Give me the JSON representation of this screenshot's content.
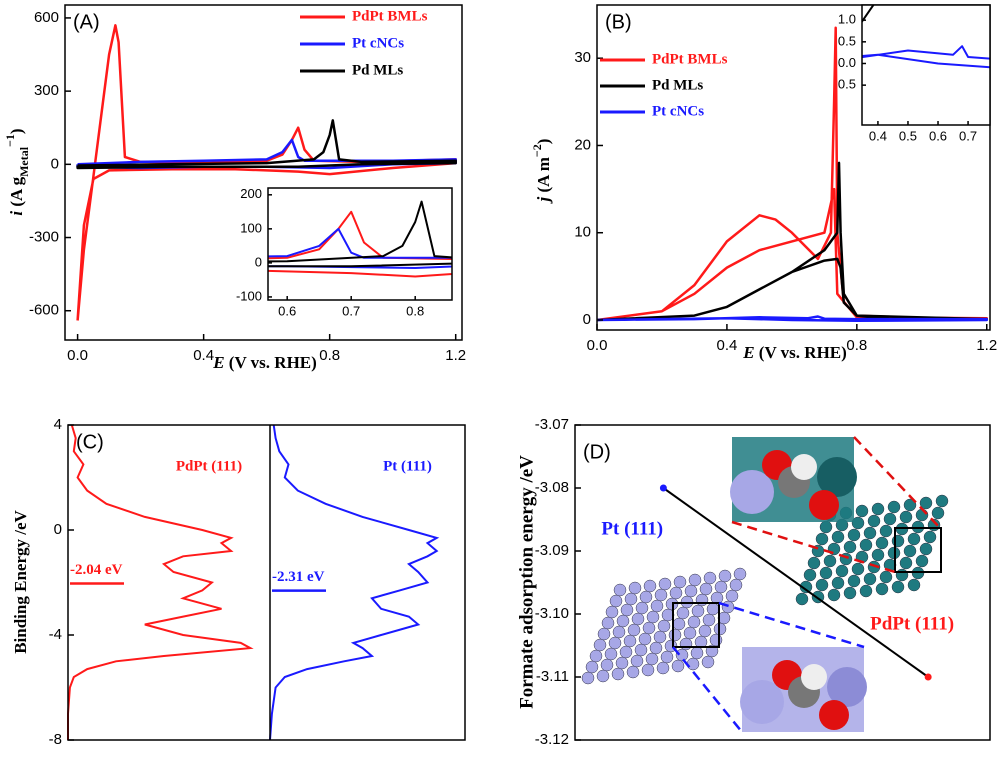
{
  "chart_data": [
    {
      "type": "cv",
      "panel": "(A)",
      "xlabel": [
        "E",
        " (V vs. RHE)"
      ],
      "ylabel": [
        "i",
        " (A g",
        "Metal",
        "−1",
        ")"
      ],
      "xlim": [
        -0.04,
        1.22
      ],
      "xticks": [
        {
          "value": 0,
          "label": "0.0"
        },
        0.4,
        0.8,
        1.2
      ],
      "ylim": [
        -720,
        653
      ],
      "yticks": [
        600,
        300,
        0,
        -300,
        -600
      ],
      "series": [
        {
          "name": "PdPt BMLs",
          "color": "#ff1a1a",
          "x": [
            0.0,
            0.02,
            0.05,
            0.08,
            0.1,
            0.12,
            0.13,
            0.15,
            0.2,
            0.4,
            0.6,
            0.65,
            0.68,
            0.7,
            0.72,
            0.75,
            0.9,
            1.2,
            1.2,
            1.0,
            0.8,
            0.7,
            0.5,
            0.3,
            0.1,
            0.05,
            0.02,
            0.0
          ],
          "values": [
            -640,
            -350,
            -50,
            250,
            450,
            570,
            500,
            30,
            10,
            5,
            15,
            40,
            100,
            150,
            60,
            15,
            10,
            20,
            5,
            -15,
            -40,
            -30,
            -20,
            -20,
            -25,
            -60,
            -250,
            -640
          ]
        },
        {
          "name": "Pt cNCs",
          "color": "#1a1aff",
          "x": [
            0,
            0.2,
            0.4,
            0.6,
            0.65,
            0.68,
            0.7,
            0.72,
            0.8,
            1.0,
            1.2,
            1.2,
            1.0,
            0.8,
            0.6,
            0.4,
            0.2,
            0,
            0
          ],
          "values": [
            0,
            10,
            15,
            20,
            50,
            100,
            30,
            15,
            15,
            15,
            20,
            5,
            0,
            -15,
            -10,
            -10,
            -15,
            -10,
            0
          ]
        },
        {
          "name": "Pd MLs",
          "color": "#000000",
          "x": [
            0,
            0.3,
            0.6,
            0.75,
            0.78,
            0.8,
            0.81,
            0.83,
            0.9,
            1.2,
            1.2,
            0.9,
            0.7,
            0.5,
            0.3,
            0,
            0
          ],
          "values": [
            -5,
            0,
            5,
            20,
            50,
            120,
            180,
            20,
            10,
            15,
            5,
            0,
            -10,
            -10,
            -10,
            -15,
            -5
          ]
        }
      ],
      "inset": {
        "xlim": [
          0.57,
          0.8575
        ],
        "xticks": [
          0.6,
          0.7,
          0.8
        ],
        "ylim": [
          -109,
          220
        ],
        "yticks": [
          200,
          100,
          0,
          -100
        ]
      }
    },
    {
      "type": "cv",
      "panel": "(B)",
      "xlabel": [
        "E",
        " (V vs. RHE)"
      ],
      "ylabel": [
        "j",
        " (A m",
        "−2",
        ")"
      ],
      "xlim": [
        0,
        1.21
      ],
      "xticks": [
        {
          "value": 0,
          "label": "0.0"
        },
        0.4,
        0.8,
        1.2
      ],
      "ylim": [
        -1.15,
        36.1
      ],
      "yticks": [
        0,
        10,
        20,
        30
      ],
      "series": [
        {
          "name": "PdPt BMLs",
          "color": "#ff1a1a",
          "x": [
            0,
            0.2,
            0.3,
            0.4,
            0.5,
            0.55,
            0.6,
            0.68,
            0.72,
            0.73,
            0.735,
            0.74,
            0.76,
            0.8,
            1.0,
            1.2,
            1.2,
            0.8,
            0.74,
            0.73,
            0.7,
            0.6,
            0.5,
            0.4,
            0.3,
            0.2,
            0
          ],
          "values": [
            0,
            1,
            4,
            9,
            12,
            11.5,
            10,
            7,
            10,
            25,
            33.5,
            10,
            2,
            0.5,
            0.2,
            0.2,
            0.2,
            0.3,
            3,
            15,
            10,
            9,
            8,
            6,
            3,
            1,
            0
          ]
        },
        {
          "name": "Pd MLs",
          "color": "#000000",
          "x": [
            0,
            0.3,
            0.4,
            0.5,
            0.6,
            0.7,
            0.74,
            0.75,
            0.76,
            0.8,
            0.9,
            1.2,
            1.2,
            0.8,
            0.76,
            0.75,
            0.745,
            0.74,
            0.72,
            0.7,
            0.6,
            0.5,
            0.4,
            0.3,
            0
          ],
          "values": [
            0,
            0.5,
            1.5,
            3.5,
            5.5,
            6.8,
            7,
            6,
            2,
            0.5,
            0.1,
            0.1,
            0.1,
            0.5,
            3,
            10,
            18,
            10,
            9,
            8,
            5.5,
            3.5,
            1.5,
            0.5,
            0
          ]
        },
        {
          "name": "Pt cNCs",
          "color": "#1a1aff",
          "x": [
            0,
            0.3,
            0.5,
            0.65,
            0.68,
            0.7,
            0.8,
            1.2,
            1.2,
            0.8,
            0.6,
            0.4,
            0.2,
            0
          ],
          "values": [
            0,
            0.1,
            0.3,
            0.2,
            0.4,
            0.15,
            0.1,
            0.1,
            0,
            -0.1,
            0,
            0.2,
            0.1,
            0
          ]
        }
      ],
      "inset": {
        "xlim": [
          0.347,
          0.773
        ],
        "xticks": [
          0.4,
          0.5,
          0.6,
          0.7
        ],
        "ylim": [
          -1.42,
          1.35
        ],
        "yticks": [
          {
            "value": 1,
            "label": "1.0"
          },
          0.5,
          {
            "value": 0,
            "label": "0.0"
          },
          {
            "value": -0.5,
            "label": "0.5"
          }
        ]
      }
    },
    {
      "type": "dos",
      "panel": "(C)",
      "ylabel": "Binding Energy /eV",
      "ylim": [
        -8,
        4
      ],
      "yticks": [
        4,
        0,
        -4,
        -8
      ],
      "energies": [
        4,
        3.5,
        3,
        2.5,
        2,
        1.5,
        1,
        0.5,
        0,
        -0.3,
        -0.5,
        -0.8,
        -1,
        -1.3,
        -1.6,
        -2,
        -2.3,
        -2.6,
        -3,
        -3.3,
        -3.6,
        -4,
        -4.3,
        -4.5,
        -4.8,
        -5,
        -5.3,
        -5.6,
        -6,
        -7,
        -8
      ],
      "series": [
        {
          "name": "PdPt (111)",
          "color": "#ff1a1a",
          "dband": -2.04,
          "dband_label": "-2.04 eV",
          "values": [
            0.02,
            0.04,
            0.03,
            0.08,
            0.05,
            0.1,
            0.2,
            0.4,
            0.7,
            0.85,
            0.8,
            0.85,
            0.6,
            0.5,
            0.55,
            0.75,
            0.7,
            0.6,
            0.8,
            0.6,
            0.4,
            0.6,
            0.9,
            0.95,
            0.5,
            0.25,
            0.1,
            0.03,
            0.01,
            0,
            0
          ]
        },
        {
          "name": "Pt (111)",
          "color": "#1a1aff",
          "dband": -2.31,
          "dband_label": "-2.31 eV",
          "values": [
            0.02,
            0.03,
            0.05,
            0.1,
            0.08,
            0.15,
            0.3,
            0.5,
            0.75,
            0.9,
            0.85,
            0.9,
            0.85,
            0.75,
            0.8,
            0.85,
            0.7,
            0.55,
            0.6,
            0.75,
            0.8,
            0.6,
            0.45,
            0.5,
            0.55,
            0.4,
            0.2,
            0.08,
            0.03,
            0.01,
            0
          ]
        }
      ]
    },
    {
      "type": "scatter",
      "panel": "(D)",
      "ylabel": "Formate adsorption energy /eV",
      "ylim": [
        -3.12,
        -3.07
      ],
      "yticks": [
        -3.07,
        -3.08,
        -3.09,
        {
          "value": -3.1,
          "label": "-3.10"
        },
        -3.11,
        -3.12
      ],
      "categories": [
        "Pt (111)",
        "PdPt (111)"
      ],
      "values": [
        -3.08,
        -3.11
      ],
      "colors": [
        "#1a1aff",
        "#ff1a1a"
      ],
      "line_color": "#000000"
    }
  ]
}
